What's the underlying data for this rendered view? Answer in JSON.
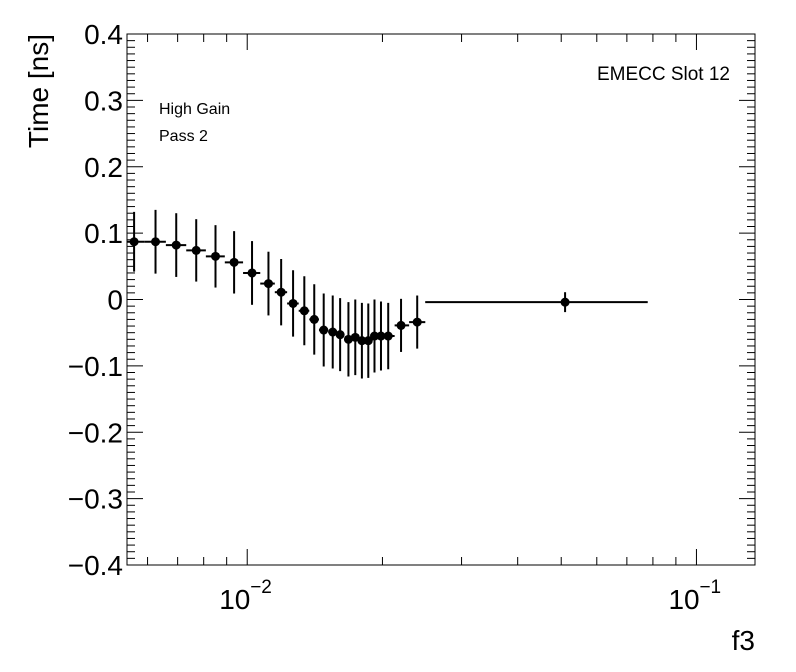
{
  "chart_data": {
    "type": "scatter",
    "x_scale": "log",
    "xlabel": "f3",
    "ylabel": "Time [ns]",
    "xlim": [
      0.0054,
      0.135
    ],
    "ylim": [
      -0.4,
      0.4
    ],
    "y_ticks": [
      {
        "value": -0.4,
        "label": "−0.4"
      },
      {
        "value": -0.3,
        "label": "−0.3"
      },
      {
        "value": -0.2,
        "label": "−0.2"
      },
      {
        "value": -0.1,
        "label": "−0.1"
      },
      {
        "value": 0,
        "label": "0"
      },
      {
        "value": 0.1,
        "label": "0.1"
      },
      {
        "value": 0.2,
        "label": "0.2"
      },
      {
        "value": 0.3,
        "label": "0.3"
      },
      {
        "value": 0.4,
        "label": "0.4"
      }
    ],
    "x_ticks": [
      {
        "value": 0.01,
        "base": "10",
        "exponent": "−2"
      },
      {
        "value": 0.1,
        "base": "10",
        "exponent": "−1"
      }
    ],
    "annotations": {
      "title_right": "EMECC Slot 12",
      "gain": "High Gain",
      "pass": "Pass 2"
    },
    "series": [
      {
        "name": "EMECC Slot 12",
        "points": [
          {
            "x": 0.0056,
            "y": 0.087,
            "yerr": 0.045
          },
          {
            "x": 0.00625,
            "y": 0.087,
            "yerr": 0.048
          },
          {
            "x": 0.00695,
            "y": 0.082,
            "yerr": 0.048
          },
          {
            "x": 0.0077,
            "y": 0.074,
            "yerr": 0.047
          },
          {
            "x": 0.0085,
            "y": 0.065,
            "yerr": 0.047
          },
          {
            "x": 0.00935,
            "y": 0.056,
            "yerr": 0.047
          },
          {
            "x": 0.01025,
            "y": 0.04,
            "yerr": 0.048
          },
          {
            "x": 0.01115,
            "y": 0.024,
            "yerr": 0.048
          },
          {
            "x": 0.0119,
            "y": 0.011,
            "yerr": 0.05
          },
          {
            "x": 0.01265,
            "y": -0.006,
            "yerr": 0.05
          },
          {
            "x": 0.0134,
            "y": -0.017,
            "yerr": 0.052
          },
          {
            "x": 0.0141,
            "y": -0.03,
            "yerr": 0.053
          },
          {
            "x": 0.0148,
            "y": -0.046,
            "yerr": 0.055
          },
          {
            "x": 0.0155,
            "y": -0.049,
            "yerr": 0.055
          },
          {
            "x": 0.0161,
            "y": -0.053,
            "yerr": 0.055
          },
          {
            "x": 0.0168,
            "y": -0.06,
            "yerr": 0.056
          },
          {
            "x": 0.0174,
            "y": -0.057,
            "yerr": 0.057
          },
          {
            "x": 0.018,
            "y": -0.062,
            "yerr": 0.057
          },
          {
            "x": 0.0186,
            "y": -0.062,
            "yerr": 0.056
          },
          {
            "x": 0.0192,
            "y": -0.055,
            "yerr": 0.055
          },
          {
            "x": 0.01985,
            "y": -0.055,
            "yerr": 0.052
          },
          {
            "x": 0.0206,
            "y": -0.055,
            "yerr": 0.05
          },
          {
            "x": 0.022,
            "y": -0.039,
            "yerr": 0.04
          },
          {
            "x": 0.0239,
            "y": -0.034,
            "yerr": 0.04
          },
          {
            "x": 0.051,
            "y": -0.004,
            "yerr": 0.015,
            "xerr_low": 0.0261,
            "xerr_high": 0.0269
          }
        ]
      }
    ]
  }
}
